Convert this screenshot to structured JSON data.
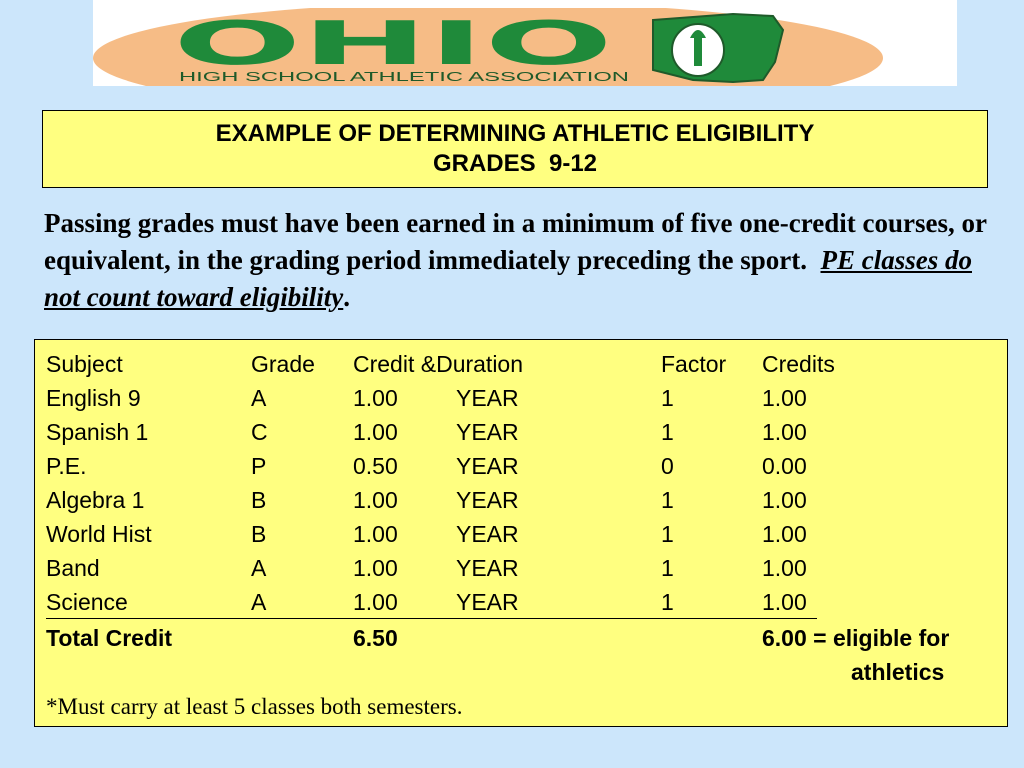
{
  "logo": {
    "wordmark": "OHIO",
    "subtitle": "HIGH SCHOOL ATHLETIC ASSOCIATION",
    "seal_text": "OHIO HIGH SCHOOL ATHLETIC ASSOCIATION",
    "colors": {
      "green": "#1f8a3a",
      "orange": "#f4b071",
      "white": "#ffffff"
    }
  },
  "title": {
    "line1": "EXAMPLE OF DETERMINING ATHLETIC ELIGIBILITY",
    "line2": "GRADES  9-12"
  },
  "intro": {
    "text": "Passing grades must have been earned in a minimum of five one-credit courses, or equivalent, in the grading period immediately preceding the sport",
    "sep": ".  ",
    "pe_note": "PE classes do not count toward eligibility",
    "end": "."
  },
  "table": {
    "headers": {
      "subject": "Subject",
      "grade": "Grade",
      "credit_duration": "Credit &Duration",
      "factor": "Factor",
      "credits": "Credits"
    },
    "rows": [
      {
        "subject": "English 9",
        "grade": "A",
        "credit": "1.00",
        "duration": "YEAR",
        "factor": "1",
        "credits": "1.00"
      },
      {
        "subject": "Spanish 1",
        "grade": "C",
        "credit": "1.00",
        "duration": "YEAR",
        "factor": "1",
        "credits": "1.00"
      },
      {
        "subject": "P.E.",
        "grade": "P",
        "credit": "0.50",
        "duration": "YEAR",
        "factor": "0",
        "credits": "0.00"
      },
      {
        "subject": "Algebra 1",
        "grade": "B",
        "credit": "1.00",
        "duration": "YEAR",
        "factor": "1",
        "credits": "1.00"
      },
      {
        "subject": "World Hist",
        "grade": "B",
        "credit": "1.00",
        "duration": "YEAR",
        "factor": "1",
        "credits": "1.00"
      },
      {
        "subject": "Band",
        "grade": "A",
        "credit": "1.00",
        "duration": "YEAR",
        "factor": "1",
        "credits": "1.00"
      },
      {
        "subject": "Science",
        "grade": "A",
        "credit": "1.00",
        "duration": "YEAR",
        "factor": "1",
        "credits": "1.00"
      }
    ],
    "total": {
      "label": "Total Credit",
      "credit": "6.50",
      "credits_text": "6.00 = eligible for",
      "credits_text2": "athletics"
    },
    "footnote": "*Must carry at least 5 classes both semesters."
  },
  "colors": {
    "background": "#cce6fb",
    "box_fill": "#ffff80"
  }
}
